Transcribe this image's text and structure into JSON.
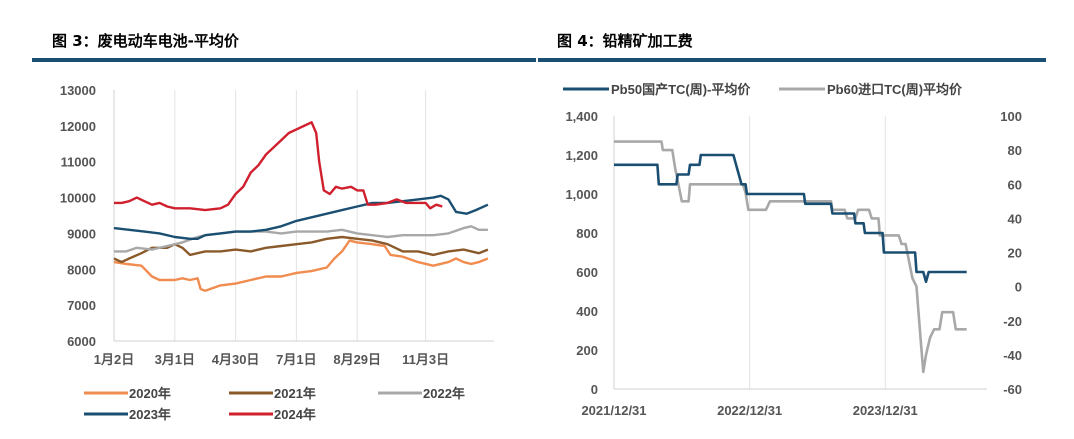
{
  "figures": {
    "left_title": "图 3：废电动车电池-平均价",
    "right_title": "图 4：铅精矿加工费"
  },
  "colors": {
    "rule": "#1b4f72",
    "y2020": "#f08c4f",
    "y2021": "#8b5a2b",
    "y2022": "#a8a8a8",
    "y2023": "#1b4f72",
    "y2024": "#d0202e",
    "pb50": "#1b4f72",
    "pb60": "#a8a8a8"
  },
  "chart_data": [
    {
      "type": "line",
      "title": "图 3：废电动车电池-平均价",
      "x_ticks": [
        "1月2日",
        "3月1日",
        "4月30日",
        "7月1日",
        "8月29日",
        "11月3日"
      ],
      "ylim": [
        6000,
        13000
      ],
      "y_ticks": [
        6000,
        7000,
        8000,
        9000,
        10000,
        11000,
        12000,
        13000
      ],
      "grid": "vertical",
      "legend": "bottom",
      "x_note": "x = trading-day index within year (0–250); ticks at 0, 40, 80, 120, 160, 205",
      "series": [
        {
          "name": "2020年",
          "color_key": "y2020",
          "points": [
            [
              0,
              8200
            ],
            [
              8,
              8150
            ],
            [
              18,
              8100
            ],
            [
              25,
              7800
            ],
            [
              30,
              7700
            ],
            [
              40,
              7700
            ],
            [
              45,
              7750
            ],
            [
              50,
              7700
            ],
            [
              55,
              7750
            ],
            [
              57,
              7450
            ],
            [
              60,
              7400
            ],
            [
              70,
              7550
            ],
            [
              80,
              7600
            ],
            [
              90,
              7700
            ],
            [
              100,
              7800
            ],
            [
              110,
              7800
            ],
            [
              120,
              7900
            ],
            [
              130,
              7950
            ],
            [
              140,
              8050
            ],
            [
              145,
              8300
            ],
            [
              150,
              8500
            ],
            [
              155,
              8800
            ],
            [
              160,
              8750
            ],
            [
              170,
              8700
            ],
            [
              178,
              8650
            ],
            [
              182,
              8400
            ],
            [
              190,
              8350
            ],
            [
              200,
              8200
            ],
            [
              210,
              8100
            ],
            [
              220,
              8200
            ],
            [
              225,
              8300
            ],
            [
              230,
              8200
            ],
            [
              235,
              8150
            ],
            [
              240,
              8200
            ],
            [
              246,
              8300
            ]
          ]
        },
        {
          "name": "2021年",
          "color_key": "y2021",
          "points": [
            [
              0,
              8300
            ],
            [
              5,
              8200
            ],
            [
              10,
              8300
            ],
            [
              18,
              8450
            ],
            [
              25,
              8600
            ],
            [
              35,
              8600
            ],
            [
              40,
              8700
            ],
            [
              45,
              8600
            ],
            [
              50,
              8400
            ],
            [
              60,
              8500
            ],
            [
              70,
              8500
            ],
            [
              80,
              8550
            ],
            [
              90,
              8500
            ],
            [
              100,
              8600
            ],
            [
              110,
              8650
            ],
            [
              120,
              8700
            ],
            [
              130,
              8750
            ],
            [
              140,
              8850
            ],
            [
              150,
              8900
            ],
            [
              160,
              8850
            ],
            [
              170,
              8800
            ],
            [
              180,
              8700
            ],
            [
              190,
              8500
            ],
            [
              200,
              8500
            ],
            [
              210,
              8400
            ],
            [
              220,
              8500
            ],
            [
              230,
              8550
            ],
            [
              240,
              8450
            ],
            [
              246,
              8550
            ]
          ]
        },
        {
          "name": "2022年",
          "color_key": "y2022",
          "points": [
            [
              0,
              8500
            ],
            [
              8,
              8500
            ],
            [
              15,
              8600
            ],
            [
              25,
              8550
            ],
            [
              35,
              8650
            ],
            [
              45,
              8750
            ],
            [
              55,
              8900
            ],
            [
              60,
              8950
            ],
            [
              70,
              9000
            ],
            [
              80,
              9050
            ],
            [
              90,
              9050
            ],
            [
              100,
              9050
            ],
            [
              110,
              9000
            ],
            [
              120,
              9050
            ],
            [
              130,
              9050
            ],
            [
              140,
              9050
            ],
            [
              150,
              9100
            ],
            [
              160,
              9000
            ],
            [
              170,
              8950
            ],
            [
              180,
              8900
            ],
            [
              190,
              8950
            ],
            [
              200,
              8950
            ],
            [
              210,
              8950
            ],
            [
              220,
              9000
            ],
            [
              230,
              9150
            ],
            [
              235,
              9200
            ],
            [
              240,
              9100
            ],
            [
              246,
              9100
            ]
          ]
        },
        {
          "name": "2023年",
          "color_key": "y2023",
          "points": [
            [
              0,
              9150
            ],
            [
              10,
              9100
            ],
            [
              20,
              9050
            ],
            [
              30,
              9000
            ],
            [
              40,
              8900
            ],
            [
              50,
              8850
            ],
            [
              55,
              8850
            ],
            [
              60,
              8950
            ],
            [
              70,
              9000
            ],
            [
              80,
              9050
            ],
            [
              90,
              9050
            ],
            [
              100,
              9100
            ],
            [
              110,
              9200
            ],
            [
              120,
              9350
            ],
            [
              130,
              9450
            ],
            [
              140,
              9550
            ],
            [
              150,
              9650
            ],
            [
              160,
              9750
            ],
            [
              170,
              9850
            ],
            [
              180,
              9850
            ],
            [
              190,
              9900
            ],
            [
              200,
              9950
            ],
            [
              210,
              10000
            ],
            [
              215,
              10050
            ],
            [
              220,
              9950
            ],
            [
              225,
              9600
            ],
            [
              232,
              9550
            ],
            [
              238,
              9650
            ],
            [
              246,
              9800
            ]
          ]
        },
        {
          "name": "2024年",
          "color_key": "y2024",
          "points": [
            [
              0,
              9850
            ],
            [
              5,
              9850
            ],
            [
              10,
              9900
            ],
            [
              15,
              10000
            ],
            [
              20,
              9900
            ],
            [
              25,
              9800
            ],
            [
              30,
              9850
            ],
            [
              35,
              9750
            ],
            [
              40,
              9700
            ],
            [
              50,
              9700
            ],
            [
              60,
              9650
            ],
            [
              70,
              9700
            ],
            [
              75,
              9800
            ],
            [
              80,
              10100
            ],
            [
              85,
              10300
            ],
            [
              90,
              10700
            ],
            [
              95,
              10900
            ],
            [
              100,
              11200
            ],
            [
              105,
              11400
            ],
            [
              110,
              11600
            ],
            [
              115,
              11800
            ],
            [
              120,
              11900
            ],
            [
              125,
              12000
            ],
            [
              130,
              12100
            ],
            [
              133,
              11800
            ],
            [
              135,
              11000
            ],
            [
              138,
              10200
            ],
            [
              142,
              10100
            ],
            [
              146,
              10300
            ],
            [
              150,
              10250
            ],
            [
              156,
              10300
            ],
            [
              160,
              10200
            ],
            [
              164,
              10200
            ],
            [
              167,
              9800
            ],
            [
              172,
              9800
            ],
            [
              180,
              9850
            ],
            [
              186,
              9950
            ],
            [
              192,
              9850
            ],
            [
              200,
              9850
            ],
            [
              205,
              9850
            ],
            [
              208,
              9700
            ],
            [
              212,
              9800
            ],
            [
              216,
              9750
            ]
          ]
        }
      ]
    },
    {
      "type": "line",
      "title": "图 4：铅精矿加工费",
      "x_ticks": [
        "2021/12/31",
        "2022/12/31",
        "2023/12/31"
      ],
      "y_left_ticks": [
        "0",
        "200",
        "400",
        "600",
        "800",
        "1,000",
        "1,200",
        "1,400"
      ],
      "y_left_lim": [
        0,
        1400
      ],
      "y_right_ticks": [
        -60,
        -40,
        -20,
        0,
        20,
        40,
        60,
        80,
        100
      ],
      "y_right_lim": [
        -60,
        100
      ],
      "grid": "vertical",
      "legend": "top",
      "x_note": "x = years after 2021/12/31",
      "series": [
        {
          "name": "Pb50国产TC(周)-平均价",
          "axis": "left",
          "color_key": "pb50",
          "points": [
            [
              0,
              1150
            ],
            [
              0.32,
              1150
            ],
            [
              0.33,
              1050
            ],
            [
              0.46,
              1050
            ],
            [
              0.47,
              1100
            ],
            [
              0.55,
              1100
            ],
            [
              0.56,
              1150
            ],
            [
              0.63,
              1150
            ],
            [
              0.64,
              1200
            ],
            [
              0.88,
              1200
            ],
            [
              0.9,
              1150
            ],
            [
              0.92,
              1100
            ],
            [
              0.94,
              1050
            ],
            [
              0.97,
              1050
            ],
            [
              0.98,
              1000
            ],
            [
              1.4,
              1000
            ],
            [
              1.41,
              950
            ],
            [
              1.6,
              950
            ],
            [
              1.61,
              900
            ],
            [
              1.77,
              900
            ],
            [
              1.78,
              850
            ],
            [
              1.84,
              850
            ],
            [
              1.85,
              800
            ],
            [
              1.98,
              800
            ],
            [
              1.99,
              700
            ],
            [
              2.22,
              700
            ],
            [
              2.23,
              600
            ],
            [
              2.28,
              600
            ],
            [
              2.3,
              550
            ],
            [
              2.32,
              600
            ],
            [
              2.6,
              600
            ]
          ]
        },
        {
          "name": "Pb60进口TC(周)平均价",
          "axis": "right",
          "color_key": "pb60",
          "points": [
            [
              0,
              85
            ],
            [
              0.35,
              85
            ],
            [
              0.36,
              80
            ],
            [
              0.43,
              80
            ],
            [
              0.45,
              70
            ],
            [
              0.5,
              50
            ],
            [
              0.55,
              50
            ],
            [
              0.56,
              60
            ],
            [
              0.95,
              60
            ],
            [
              0.97,
              55
            ],
            [
              0.99,
              45
            ],
            [
              1.12,
              45
            ],
            [
              1.15,
              50
            ],
            [
              1.6,
              50
            ],
            [
              1.61,
              45
            ],
            [
              1.7,
              45
            ],
            [
              1.72,
              40
            ],
            [
              1.78,
              40
            ],
            [
              1.8,
              45
            ],
            [
              1.88,
              45
            ],
            [
              1.9,
              40
            ],
            [
              1.95,
              40
            ],
            [
              1.96,
              30
            ],
            [
              2.1,
              30
            ],
            [
              2.12,
              25
            ],
            [
              2.15,
              25
            ],
            [
              2.2,
              5
            ],
            [
              2.23,
              0
            ],
            [
              2.26,
              -30
            ],
            [
              2.28,
              -50
            ],
            [
              2.3,
              -40
            ],
            [
              2.33,
              -30
            ],
            [
              2.36,
              -25
            ],
            [
              2.4,
              -25
            ],
            [
              2.42,
              -15
            ],
            [
              2.5,
              -15
            ],
            [
              2.52,
              -25
            ],
            [
              2.6,
              -25
            ]
          ]
        }
      ]
    }
  ]
}
